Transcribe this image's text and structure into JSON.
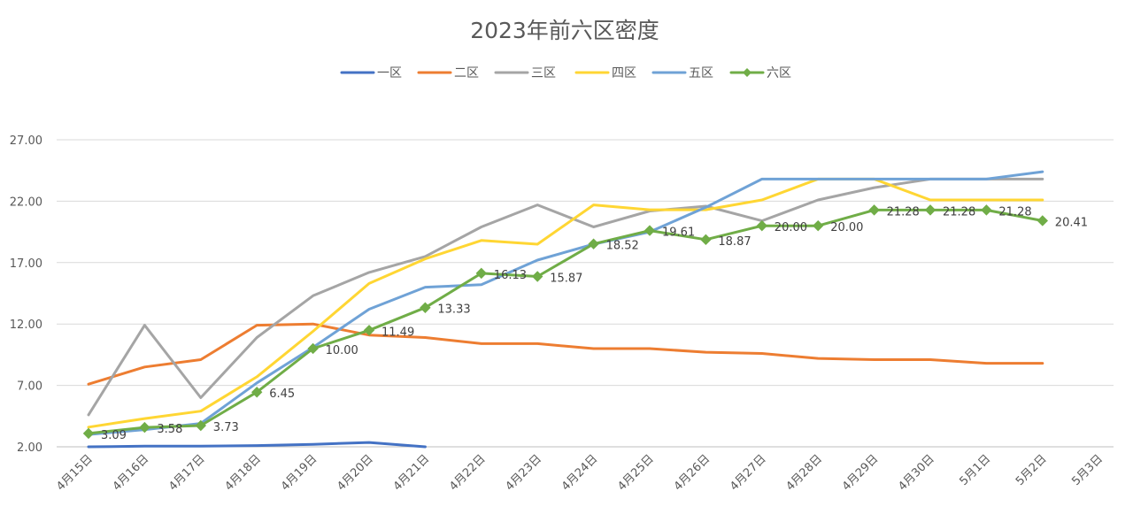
{
  "chart_data": {
    "type": "line",
    "title": "2023年前六区密度",
    "xlabel": "",
    "ylabel": "",
    "ylim": [
      2,
      27
    ],
    "yticks": [
      "2.00",
      "7.00",
      "12.00",
      "17.00",
      "22.00",
      "27.00"
    ],
    "categories": [
      "4月15日",
      "4月16日",
      "4月17日",
      "4月18日",
      "4月19日",
      "4月20日",
      "4月21日",
      "4月22日",
      "4月23日",
      "4月24日",
      "4月25日",
      "4月26日",
      "4月27日",
      "4月28日",
      "4月29日",
      "4月30日",
      "5月1日",
      "5月2日",
      "5月3日"
    ],
    "grid": true,
    "legend_position": "top",
    "series": [
      {
        "name": "一区",
        "color": "#4472C4",
        "width": 3,
        "markers": false,
        "values": [
          2.0,
          2.05,
          2.05,
          2.1,
          2.2,
          2.35,
          1.9,
          null,
          null,
          null,
          null,
          null,
          null,
          null,
          null,
          null,
          null,
          null,
          null
        ]
      },
      {
        "name": "二区",
        "color": "#ED7D31",
        "width": 3,
        "markers": false,
        "values": [
          7.1,
          8.5,
          9.1,
          11.9,
          12.0,
          11.1,
          10.9,
          10.4,
          10.4,
          10.0,
          10.0,
          9.7,
          9.6,
          9.2,
          9.1,
          9.1,
          8.8,
          8.8,
          null
        ]
      },
      {
        "name": "三区",
        "color": "#A5A5A5",
        "width": 3,
        "markers": false,
        "values": [
          4.6,
          11.9,
          6.0,
          10.9,
          14.3,
          16.2,
          17.5,
          19.9,
          21.7,
          19.9,
          21.2,
          21.6,
          20.4,
          22.1,
          23.1,
          23.8,
          23.8,
          23.8,
          null
        ]
      },
      {
        "name": "四区",
        "color": "#FFD633",
        "width": 3,
        "markers": false,
        "values": [
          3.6,
          4.3,
          4.9,
          7.7,
          11.4,
          15.3,
          17.3,
          18.8,
          18.5,
          21.7,
          21.3,
          21.3,
          22.1,
          23.8,
          23.8,
          22.1,
          22.1,
          22.1,
          null
        ]
      },
      {
        "name": "五区",
        "color": "#6FA2D6",
        "width": 3,
        "markers": false,
        "values": [
          3.0,
          3.4,
          3.9,
          7.2,
          10.1,
          13.2,
          15.0,
          15.2,
          17.2,
          18.5,
          19.5,
          21.5,
          23.8,
          23.8,
          23.8,
          23.8,
          23.8,
          24.4,
          null
        ]
      },
      {
        "name": "六区",
        "color": "#70AD47",
        "width": 3,
        "markers": true,
        "values": [
          3.09,
          3.58,
          3.73,
          6.45,
          10.0,
          11.49,
          13.33,
          16.13,
          15.87,
          18.52,
          19.61,
          18.87,
          20.0,
          20.0,
          21.28,
          21.28,
          21.28,
          20.41,
          null
        ],
        "data_labels": [
          "3.09",
          "3.58",
          "3.73",
          "6.45",
          "10.00",
          "11.49",
          "13.33",
          "16.13",
          "15.87",
          "18.52",
          "19.61",
          "18.87",
          "20.00",
          "20.00",
          "21.28",
          "21.28",
          "21.28",
          "20.41",
          ""
        ]
      }
    ]
  }
}
